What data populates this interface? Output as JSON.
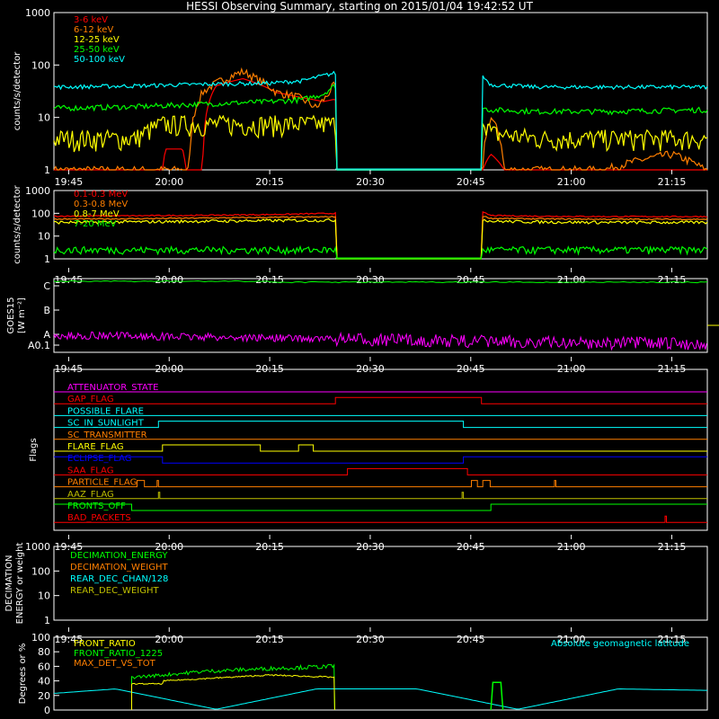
{
  "title": "HESSI Observing Summary, starting on 2015/01/04 19:42:52 UT",
  "time_ticks": [
    "19:45",
    "20:00",
    "20:15",
    "20:30",
    "20:45",
    "21:00",
    "21:15"
  ],
  "time_tick_minutes": [
    0,
    15,
    30,
    45,
    60,
    75,
    90
  ],
  "time_range_minutes": [
    -2.2,
    95.3
  ],
  "colors": {
    "red": "#ff0000",
    "orange": "#ff7f00",
    "yellow": "#ffff00",
    "green": "#00ff00",
    "cyan": "#00ffff",
    "magenta": "#ff00ff",
    "blue": "#0000ff",
    "olive": "#bfbf00",
    "white": "#ffffff"
  },
  "chart_data": [
    {
      "type": "line",
      "panel": "low-energy",
      "ylabel": "counts/s/detector",
      "yscale": "log",
      "ylim": [
        1,
        1000
      ],
      "ytick_labels": [
        "1",
        "10",
        "100",
        "1000"
      ],
      "ytick_values": [
        1,
        10,
        100,
        1000
      ],
      "legend": [
        "3-6 keV",
        "6-12 keV",
        "12-25 keV",
        "25-50 keV",
        "50-100 keV"
      ],
      "legend_placement": "top-left",
      "data_gaps_minutes": [
        [
          39.8,
          61.6
        ]
      ],
      "series": [
        {
          "name": "3-6 keV",
          "color": "#ff0000",
          "x": [
            -2,
            14,
            14.5,
            17,
            17.5,
            20,
            22,
            26,
            28,
            31,
            34,
            38,
            39.5,
            61.8,
            63,
            65,
            80,
            95
          ],
          "y": [
            1,
            1,
            2.5,
            2.5,
            1,
            1,
            40,
            55,
            45,
            30,
            25,
            20,
            22,
            1,
            2,
            1,
            1,
            1
          ]
        },
        {
          "name": "6-12 keV",
          "color": "#ff7f00",
          "x": [
            -2,
            10,
            14,
            18,
            20,
            22,
            24,
            26,
            28,
            31,
            34,
            37,
            38.5,
            39.5,
            61.8,
            63,
            65,
            80,
            90,
            95
          ],
          "y": [
            1,
            1,
            1,
            1,
            30,
            45,
            60,
            75,
            55,
            30,
            25,
            15,
            25,
            40,
            1,
            10,
            1,
            1,
            2,
            1
          ],
          "noise": 0.06
        },
        {
          "name": "12-25 keV",
          "color": "#ffff00",
          "x": [
            -2,
            10,
            14,
            18,
            20,
            24,
            28,
            32,
            36,
            39.7,
            61.8,
            63,
            70,
            80,
            95
          ],
          "y": [
            4,
            4,
            7.5,
            7.5,
            7.5,
            7.5,
            7.5,
            7.5,
            7.5,
            7.5,
            10,
            5,
            4,
            4,
            4
          ],
          "noise": 0.15
        },
        {
          "name": "25-50 keV",
          "color": "#00ff00",
          "x": [
            -2,
            10,
            20,
            30,
            35,
            38,
            39.7,
            61.8,
            63,
            70,
            80,
            95
          ],
          "y": [
            15,
            16,
            18,
            20,
            22,
            28,
            40,
            15,
            14,
            13,
            13,
            14
          ],
          "noise": 0.04
        },
        {
          "name": "50-100 keV",
          "color": "#00ffff",
          "x": [
            -2,
            10,
            20,
            30,
            35,
            39.7,
            61.8,
            63,
            70,
            80,
            95
          ],
          "y": [
            38,
            40,
            43,
            45,
            50,
            70,
            60,
            42,
            38,
            38,
            38
          ],
          "noise": 0.03
        }
      ]
    },
    {
      "type": "line",
      "panel": "high-energy",
      "ylabel": "counts/s/detector",
      "yscale": "log",
      "ylim": [
        1,
        1000
      ],
      "ytick_labels": [
        "1",
        "10",
        "100",
        "1000"
      ],
      "ytick_values": [
        1,
        10,
        100,
        1000
      ],
      "legend": [
        "0.1-0.3 MeV",
        "0.3-0.8 MeV",
        "0.8-7 MeV",
        "7-20 MeV"
      ],
      "legend_placement": "top-left",
      "data_gaps_minutes": [
        [
          39.8,
          61.6
        ]
      ],
      "series": [
        {
          "name": "0.1-0.3 MeV",
          "color": "#ff0000",
          "x": [
            -2,
            10,
            20,
            30,
            39.7,
            61.8,
            63,
            70,
            80,
            95
          ],
          "y": [
            75,
            78,
            82,
            88,
            100,
            110,
            80,
            75,
            72,
            72
          ],
          "noise": 0.02
        },
        {
          "name": "0.3-0.8 MeV",
          "color": "#ff7f00",
          "x": [
            -2,
            10,
            20,
            30,
            39.7,
            61.8,
            63,
            70,
            80,
            95
          ],
          "y": [
            55,
            58,
            62,
            66,
            70,
            75,
            60,
            57,
            55,
            55
          ],
          "noise": 0.02
        },
        {
          "name": "0.8-7 MeV",
          "color": "#ffff00",
          "x": [
            -2,
            10,
            20,
            30,
            39.7,
            61.8,
            63,
            70,
            80,
            95
          ],
          "y": [
            40,
            42,
            45,
            48,
            50,
            55,
            45,
            42,
            40,
            40
          ],
          "noise": 0.05
        },
        {
          "name": "7-20 MeV",
          "color": "#00ff00",
          "x": [
            -2,
            10,
            20,
            30,
            39.7,
            61.8,
            63,
            70,
            80,
            95
          ],
          "y": [
            2.5,
            2.5,
            2.5,
            2.5,
            2.5,
            2.5,
            2.5,
            2.5,
            2.5,
            2.5
          ],
          "noise": 0.12
        }
      ]
    },
    {
      "type": "line",
      "panel": "goes",
      "ylabel": "GOES15",
      "ylabel2": "[W m⁻²]",
      "yscale": "log",
      "ytick_labels": [
        "A0.1",
        "A",
        "B",
        "C"
      ],
      "ytick_positions": [
        "A0.1",
        "A",
        "B",
        "C"
      ],
      "series": [
        {
          "name": "GOES long",
          "color": "#00ff00",
          "x": [
            -2,
            20,
            40,
            60,
            80,
            95
          ],
          "y": [
            "C-",
            "C-",
            "C-",
            "C-",
            "C-",
            "C-"
          ],
          "level": 0.97,
          "noise": 0.004
        },
        {
          "name": "GOES short",
          "color": "#ff00ff",
          "x": [
            -2,
            5,
            10,
            20,
            30,
            40,
            50,
            60,
            70,
            80,
            90,
            95
          ],
          "level": [
            0.33,
            0.36,
            0.33,
            0.3,
            0.27,
            0.22,
            0.18,
            0.14,
            0.1,
            0.08,
            0.06,
            0.05
          ],
          "noise": 0.03
        }
      ]
    },
    {
      "type": "line",
      "panel": "flags",
      "ylabel": "Flags",
      "flags": [
        {
          "name": "ATTENUATOR_STATE",
          "color": "#ff00ff",
          "steps": [
            [
              -2,
              0
            ]
          ]
        },
        {
          "name": "GAP_FLAG",
          "color": "#ff0000",
          "steps": [
            [
              -2,
              0
            ],
            [
              39.8,
              1
            ],
            [
              61.6,
              0
            ]
          ]
        },
        {
          "name": "POSSIBLE_FLARE",
          "color": "#00ffff",
          "steps": [
            [
              -2,
              0
            ]
          ]
        },
        {
          "name": "SC_IN_SUNLIGHT",
          "color": "#00ffff",
          "steps": [
            [
              -2,
              0
            ],
            [
              13.4,
              1
            ],
            [
              58.9,
              0
            ]
          ]
        },
        {
          "name": "SC_TRANSMITTER",
          "color": "#ff7f00",
          "steps": [
            [
              -2,
              0
            ]
          ]
        },
        {
          "name": "FLARE_FLAG",
          "color": "#ffff00",
          "steps": [
            [
              -2,
              0
            ],
            [
              14,
              1
            ],
            [
              28.6,
              0
            ],
            [
              34.3,
              1
            ],
            [
              36.5,
              0
            ]
          ]
        },
        {
          "name": "ECLIPSE_FLAG",
          "color": "#0000ff",
          "steps": [
            [
              -2,
              1
            ],
            [
              14,
              0
            ],
            [
              58.9,
              1
            ]
          ]
        },
        {
          "name": "SAA_FLAG",
          "color": "#ff0000",
          "steps": [
            [
              -2,
              0
            ],
            [
              41.6,
              1
            ],
            [
              59.5,
              0
            ]
          ]
        },
        {
          "name": "PARTICLE_FLAG",
          "color": "#ff7f00",
          "steps": [
            [
              -2,
              0
            ],
            [
              10.2,
              1
            ],
            [
              11.3,
              0
            ],
            [
              13.2,
              1
            ],
            [
              13.4,
              0
            ],
            [
              60.1,
              1
            ],
            [
              61,
              0
            ],
            [
              61.8,
              1
            ],
            [
              62.9,
              0
            ],
            [
              72.5,
              1
            ],
            [
              72.7,
              0
            ]
          ]
        },
        {
          "name": "AAZ_FLAG",
          "color": "#bfbf00",
          "steps": [
            [
              -2,
              0
            ],
            [
              13.4,
              1
            ],
            [
              13.6,
              0
            ],
            [
              58.7,
              1
            ],
            [
              58.9,
              0
            ]
          ]
        },
        {
          "name": "FRONTS_OFF",
          "color": "#00ff00",
          "steps": [
            [
              -2,
              1
            ],
            [
              9.4,
              0
            ],
            [
              63,
              1
            ]
          ]
        },
        {
          "name": "BAD_PACKETS",
          "color": "#ff0000",
          "steps": [
            [
              -2,
              0
            ],
            [
              89,
              1
            ],
            [
              89.2,
              0
            ]
          ]
        }
      ]
    },
    {
      "type": "line",
      "panel": "decimation",
      "ylabel": "DECIMATION",
      "ylabel2": "ENERGY or weight",
      "yscale": "log",
      "ylim": [
        1,
        1000
      ],
      "ytick_labels": [
        "1",
        "10",
        "100",
        "1000"
      ],
      "ytick_values": [
        1,
        10,
        100,
        1000
      ],
      "legend": [
        {
          "name": "DECIMATION_ENERGY",
          "color": "#00ff00"
        },
        {
          "name": "DECIMATION_WEIGHT",
          "color": "#ff7f00"
        },
        {
          "name": "REAR_DEC_CHAN/128",
          "color": "#00ffff"
        },
        {
          "name": "REAR_DEC_WEIGHT",
          "color": "#bfbf00"
        }
      ],
      "legend_placement": "top-left",
      "series": []
    },
    {
      "type": "line",
      "panel": "ratios",
      "ylabel": "Degrees or %",
      "ylim": [
        0,
        100
      ],
      "ytick_labels": [
        "0",
        "20",
        "40",
        "60",
        "80",
        "100"
      ],
      "ytick_values": [
        0,
        20,
        40,
        60,
        80,
        100
      ],
      "legend": [
        {
          "name": "FRONT_RATIO",
          "color": "#ffff00"
        },
        {
          "name": "FRONT_RATIO_1225",
          "color": "#00ff00"
        },
        {
          "name": "MAX_DET_VS_TOT",
          "color": "#ff7f00"
        }
      ],
      "legend_placement": "top-left",
      "annotation": "Absolute geomagnetic latitude",
      "annotation_color": "#00ffff",
      "series": [
        {
          "name": "FRONT_RATIO",
          "color": "#ffff00",
          "x": [
            9.4,
            14,
            14.1,
            20,
            30,
            39.7
          ],
          "y": [
            36,
            36,
            40,
            43,
            48,
            45
          ],
          "noise": 0.02
        },
        {
          "name": "FRONT_RATIO_1225",
          "color": "#00ff00",
          "x": [
            9.4,
            14,
            20,
            30,
            39.7
          ],
          "y": [
            45,
            48,
            53,
            57,
            60
          ],
          "noise": 0.05
        },
        {
          "name": "spike",
          "color": "#00ff00",
          "x": [
            63,
            63.3,
            64.5,
            64.8
          ],
          "y": [
            0,
            38,
            38,
            0
          ]
        },
        {
          "name": "geomagnetic",
          "color": "#00ffff",
          "x": [
            -2,
            7,
            22,
            37,
            52,
            67,
            82,
            95
          ],
          "y": [
            23,
            29,
            1,
            29,
            29,
            1,
            29,
            27
          ]
        }
      ]
    }
  ]
}
